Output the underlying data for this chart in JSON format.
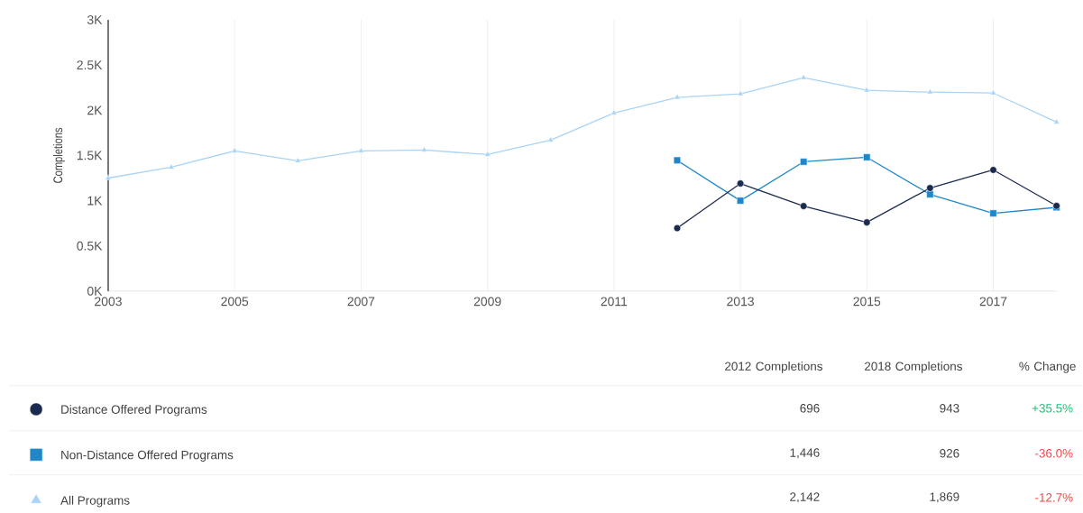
{
  "chart_data": {
    "type": "line",
    "ylabel": "Completions",
    "xlim": [
      2003,
      2018
    ],
    "xticks": [
      2003,
      2005,
      2007,
      2009,
      2011,
      2013,
      2015,
      2017
    ],
    "ylim": [
      0,
      3000
    ],
    "yticks": [
      {
        "value": 0,
        "label": "0K"
      },
      {
        "value": 500,
        "label": "0.5K"
      },
      {
        "value": 1000,
        "label": "1K"
      },
      {
        "value": 1500,
        "label": "1.5K"
      },
      {
        "value": 2000,
        "label": "2K"
      },
      {
        "value": 2500,
        "label": "2.5K"
      },
      {
        "value": 3000,
        "label": "3K"
      }
    ],
    "grid": "x",
    "legend": "bottom",
    "series": [
      {
        "name": "Distance Offered Programs",
        "color": "#1b2a4e",
        "marker": "circle",
        "x": [
          2012,
          2013,
          2014,
          2015,
          2016,
          2017,
          2018
        ],
        "values": [
          696,
          1190,
          940,
          760,
          1140,
          1340,
          943
        ]
      },
      {
        "name": "Non-Distance Offered Programs",
        "color": "#1f87c8",
        "marker": "square",
        "x": [
          2012,
          2013,
          2014,
          2015,
          2016,
          2017,
          2018
        ],
        "values": [
          1446,
          1000,
          1430,
          1480,
          1070,
          860,
          926
        ]
      },
      {
        "name": "All Programs",
        "color": "#a9d4f5",
        "marker": "triangle",
        "x": [
          2003,
          2004,
          2005,
          2006,
          2007,
          2008,
          2009,
          2010,
          2011,
          2012,
          2013,
          2014,
          2015,
          2016,
          2017,
          2018
        ],
        "values": [
          1250,
          1370,
          1550,
          1440,
          1550,
          1560,
          1510,
          1670,
          1970,
          2142,
          2180,
          2360,
          2220,
          2200,
          2190,
          1869
        ]
      }
    ],
    "annotations": [
      "2012 Completions",
      "2018 Completions",
      "% Change",
      "696",
      "943",
      "+35.5%",
      "1,446",
      "926",
      "-36.0%",
      "2,142",
      "1,869",
      "-12.7%"
    ]
  }
}
